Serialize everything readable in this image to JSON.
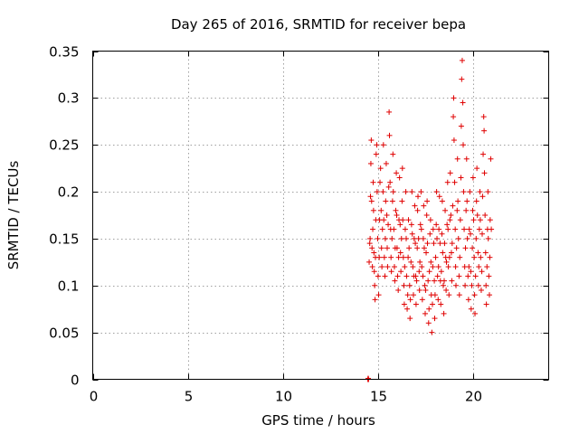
{
  "chart_data": {
    "type": "scatter",
    "title": "Day 265 of 2016, SRMTID for receiver bepa",
    "xlabel": "GPS time / hours",
    "ylabel": "SRMTID / TECUs",
    "xlim": [
      0,
      24
    ],
    "ylim": [
      0,
      0.35
    ],
    "xticks": [
      0,
      5,
      10,
      15,
      20
    ],
    "xtick_labels": [
      "0",
      "5",
      "10",
      "15",
      "20"
    ],
    "yticks": [
      0,
      0.05,
      0.1,
      0.15,
      0.2,
      0.25,
      0.3,
      0.35
    ],
    "ytick_labels": [
      "0",
      "0.05",
      "0.1",
      "0.15",
      "0.2",
      "0.25",
      "0.3",
      "0.35"
    ],
    "grid": true,
    "marker": "plus",
    "marker_color": "#e00000",
    "series": [
      {
        "name": "SRMTID",
        "points": [
          [
            14.48,
            0.0
          ],
          [
            14.5,
            0.001
          ],
          [
            14.52,
            0.0
          ],
          [
            14.55,
            0.125
          ],
          [
            14.58,
            0.145
          ],
          [
            14.6,
            0.15
          ],
          [
            14.62,
            0.195
          ],
          [
            14.64,
            0.23
          ],
          [
            14.66,
            0.255
          ],
          [
            14.68,
            0.19
          ],
          [
            14.7,
            0.14
          ],
          [
            14.72,
            0.12
          ],
          [
            14.74,
            0.16
          ],
          [
            14.76,
            0.21
          ],
          [
            14.78,
            0.18
          ],
          [
            14.8,
            0.135
          ],
          [
            14.82,
            0.115
          ],
          [
            14.84,
            0.1
          ],
          [
            14.86,
            0.085
          ],
          [
            14.88,
            0.13
          ],
          [
            14.9,
            0.17
          ],
          [
            14.92,
            0.24
          ],
          [
            14.95,
            0.25
          ],
          [
            14.97,
            0.2
          ],
          [
            15.0,
            0.15
          ],
          [
            15.02,
            0.11
          ],
          [
            15.05,
            0.09
          ],
          [
            15.08,
            0.13
          ],
          [
            15.1,
            0.17
          ],
          [
            15.12,
            0.21
          ],
          [
            15.15,
            0.225
          ],
          [
            15.18,
            0.18
          ],
          [
            15.2,
            0.14
          ],
          [
            15.22,
            0.12
          ],
          [
            15.25,
            0.16
          ],
          [
            15.28,
            0.2
          ],
          [
            15.3,
            0.25
          ],
          [
            15.32,
            0.17
          ],
          [
            15.35,
            0.13
          ],
          [
            15.38,
            0.11
          ],
          [
            15.4,
            0.15
          ],
          [
            15.42,
            0.19
          ],
          [
            15.45,
            0.23
          ],
          [
            15.48,
            0.175
          ],
          [
            15.5,
            0.14
          ],
          [
            15.52,
            0.12
          ],
          [
            15.55,
            0.165
          ],
          [
            15.58,
            0.205
          ],
          [
            15.6,
            0.285
          ],
          [
            15.62,
            0.26
          ],
          [
            15.65,
            0.21
          ],
          [
            15.68,
            0.16
          ],
          [
            15.7,
            0.13
          ],
          [
            15.72,
            0.115
          ],
          [
            15.75,
            0.15
          ],
          [
            15.78,
            0.19
          ],
          [
            15.8,
            0.24
          ],
          [
            15.82,
            0.2
          ],
          [
            15.85,
            0.16
          ],
          [
            15.88,
            0.12
          ],
          [
            15.9,
            0.105
          ],
          [
            15.92,
            0.14
          ],
          [
            15.95,
            0.18
          ],
          [
            15.98,
            0.22
          ],
          [
            16.0,
            0.175
          ],
          [
            16.02,
            0.14
          ],
          [
            16.05,
            0.11
          ],
          [
            16.08,
            0.095
          ],
          [
            16.1,
            0.13
          ],
          [
            16.12,
            0.17
          ],
          [
            16.15,
            0.215
          ],
          [
            16.18,
            0.165
          ],
          [
            16.2,
            0.135
          ],
          [
            16.22,
            0.115
          ],
          [
            16.25,
            0.15
          ],
          [
            16.28,
            0.19
          ],
          [
            16.3,
            0.225
          ],
          [
            16.32,
            0.17
          ],
          [
            16.35,
            0.13
          ],
          [
            16.38,
            0.1
          ],
          [
            16.4,
            0.08
          ],
          [
            16.42,
            0.12
          ],
          [
            16.45,
            0.16
          ],
          [
            16.48,
            0.2
          ],
          [
            16.5,
            0.15
          ],
          [
            16.52,
            0.11
          ],
          [
            16.55,
            0.075
          ],
          [
            16.58,
            0.09
          ],
          [
            16.6,
            0.13
          ],
          [
            16.62,
            0.17
          ],
          [
            16.65,
            0.14
          ],
          [
            16.68,
            0.1
          ],
          [
            16.7,
            0.065
          ],
          [
            16.72,
            0.085
          ],
          [
            16.75,
            0.125
          ],
          [
            16.78,
            0.165
          ],
          [
            16.8,
            0.2
          ],
          [
            16.82,
            0.155
          ],
          [
            16.85,
            0.12
          ],
          [
            16.88,
            0.09
          ],
          [
            16.9,
            0.11
          ],
          [
            16.92,
            0.15
          ],
          [
            16.95,
            0.185
          ],
          [
            16.98,
            0.145
          ],
          [
            17.0,
            0.11
          ],
          [
            17.02,
            0.08
          ],
          [
            17.05,
            0.105
          ],
          [
            17.08,
            0.14
          ],
          [
            17.1,
            0.18
          ],
          [
            17.12,
            0.195
          ],
          [
            17.15,
            0.15
          ],
          [
            17.18,
            0.115
          ],
          [
            17.2,
            0.095
          ],
          [
            17.22,
            0.125
          ],
          [
            17.25,
            0.165
          ],
          [
            17.28,
            0.2
          ],
          [
            17.3,
            0.16
          ],
          [
            17.32,
            0.12
          ],
          [
            17.35,
            0.085
          ],
          [
            17.38,
            0.11
          ],
          [
            17.4,
            0.15
          ],
          [
            17.42,
            0.185
          ],
          [
            17.45,
            0.14
          ],
          [
            17.48,
            0.1
          ],
          [
            17.5,
            0.07
          ],
          [
            17.52,
            0.095
          ],
          [
            17.55,
            0.135
          ],
          [
            17.58,
            0.175
          ],
          [
            17.6,
            0.19
          ],
          [
            17.62,
            0.145
          ],
          [
            17.65,
            0.105
          ],
          [
            17.68,
            0.06
          ],
          [
            17.7,
            0.075
          ],
          [
            17.72,
            0.115
          ],
          [
            17.75,
            0.155
          ],
          [
            17.78,
            0.17
          ],
          [
            17.8,
            0.125
          ],
          [
            17.82,
            0.09
          ],
          [
            17.85,
            0.05
          ],
          [
            17.88,
            0.08
          ],
          [
            17.9,
            0.12
          ],
          [
            17.92,
            0.16
          ],
          [
            17.95,
            0.145
          ],
          [
            17.98,
            0.105
          ],
          [
            18.0,
            0.065
          ],
          [
            18.02,
            0.09
          ],
          [
            18.05,
            0.13
          ],
          [
            18.08,
            0.165
          ],
          [
            18.1,
            0.2
          ],
          [
            18.12,
            0.15
          ],
          [
            18.15,
            0.11
          ],
          [
            18.18,
            0.085
          ],
          [
            18.2,
            0.12
          ],
          [
            18.22,
            0.16
          ],
          [
            18.25,
            0.195
          ],
          [
            18.28,
            0.145
          ],
          [
            18.3,
            0.105
          ],
          [
            18.32,
            0.08
          ],
          [
            18.35,
            0.115
          ],
          [
            18.38,
            0.155
          ],
          [
            18.4,
            0.19
          ],
          [
            18.42,
            0.135
          ],
          [
            18.45,
            0.1
          ],
          [
            18.48,
            0.07
          ],
          [
            18.5,
            0.105
          ],
          [
            18.52,
            0.145
          ],
          [
            18.55,
            0.18
          ],
          [
            18.58,
            0.13
          ],
          [
            18.6,
            0.095
          ],
          [
            18.62,
            0.125
          ],
          [
            18.65,
            0.165
          ],
          [
            18.68,
            0.21
          ],
          [
            18.7,
            0.16
          ],
          [
            18.72,
            0.12
          ],
          [
            18.75,
            0.09
          ],
          [
            18.78,
            0.13
          ],
          [
            18.8,
            0.17
          ],
          [
            18.82,
            0.22
          ],
          [
            18.85,
            0.175
          ],
          [
            18.88,
            0.135
          ],
          [
            18.9,
            0.105
          ],
          [
            18.92,
            0.145
          ],
          [
            18.95,
            0.185
          ],
          [
            18.98,
            0.28
          ],
          [
            19.0,
            0.3
          ],
          [
            19.02,
            0.255
          ],
          [
            19.05,
            0.21
          ],
          [
            19.08,
            0.16
          ],
          [
            19.1,
            0.12
          ],
          [
            19.12,
            0.1
          ],
          [
            19.15,
            0.14
          ],
          [
            19.18,
            0.18
          ],
          [
            19.2,
            0.235
          ],
          [
            19.22,
            0.19
          ],
          [
            19.25,
            0.15
          ],
          [
            19.28,
            0.11
          ],
          [
            19.3,
            0.09
          ],
          [
            19.32,
            0.13
          ],
          [
            19.35,
            0.17
          ],
          [
            19.38,
            0.215
          ],
          [
            19.4,
            0.27
          ],
          [
            19.42,
            0.32
          ],
          [
            19.45,
            0.34
          ],
          [
            19.48,
            0.295
          ],
          [
            19.5,
            0.25
          ],
          [
            19.52,
            0.2
          ],
          [
            19.55,
            0.16
          ],
          [
            19.58,
            0.12
          ],
          [
            19.6,
            0.1
          ],
          [
            19.62,
            0.14
          ],
          [
            19.65,
            0.18
          ],
          [
            19.68,
            0.235
          ],
          [
            19.7,
            0.19
          ],
          [
            19.72,
            0.15
          ],
          [
            19.75,
            0.11
          ],
          [
            19.78,
            0.085
          ],
          [
            19.8,
            0.12
          ],
          [
            19.82,
            0.16
          ],
          [
            19.85,
            0.2
          ],
          [
            19.88,
            0.155
          ],
          [
            19.9,
            0.115
          ],
          [
            19.92,
            0.075
          ],
          [
            19.95,
            0.1
          ],
          [
            19.98,
            0.14
          ],
          [
            20.0,
            0.18
          ],
          [
            20.02,
            0.215
          ],
          [
            20.05,
            0.17
          ],
          [
            20.08,
            0.13
          ],
          [
            20.1,
            0.09
          ],
          [
            20.12,
            0.07
          ],
          [
            20.15,
            0.11
          ],
          [
            20.18,
            0.15
          ],
          [
            20.2,
            0.19
          ],
          [
            20.22,
            0.225
          ],
          [
            20.25,
            0.175
          ],
          [
            20.28,
            0.135
          ],
          [
            20.3,
            0.1
          ],
          [
            20.32,
            0.12
          ],
          [
            20.35,
            0.16
          ],
          [
            20.38,
            0.2
          ],
          [
            20.4,
            0.17
          ],
          [
            20.42,
            0.13
          ],
          [
            20.45,
            0.095
          ],
          [
            20.48,
            0.115
          ],
          [
            20.5,
            0.155
          ],
          [
            20.52,
            0.195
          ],
          [
            20.55,
            0.24
          ],
          [
            20.58,
            0.28
          ],
          [
            20.6,
            0.265
          ],
          [
            20.62,
            0.22
          ],
          [
            20.65,
            0.175
          ],
          [
            20.68,
            0.135
          ],
          [
            20.7,
            0.1
          ],
          [
            20.72,
            0.08
          ],
          [
            20.75,
            0.12
          ],
          [
            20.78,
            0.16
          ],
          [
            20.8,
            0.2
          ],
          [
            20.82,
            0.15
          ],
          [
            20.85,
            0.11
          ],
          [
            20.88,
            0.09
          ],
          [
            20.9,
            0.13
          ],
          [
            20.92,
            0.17
          ],
          [
            20.95,
            0.235
          ],
          [
            20.98,
            0.16
          ]
        ]
      }
    ]
  }
}
